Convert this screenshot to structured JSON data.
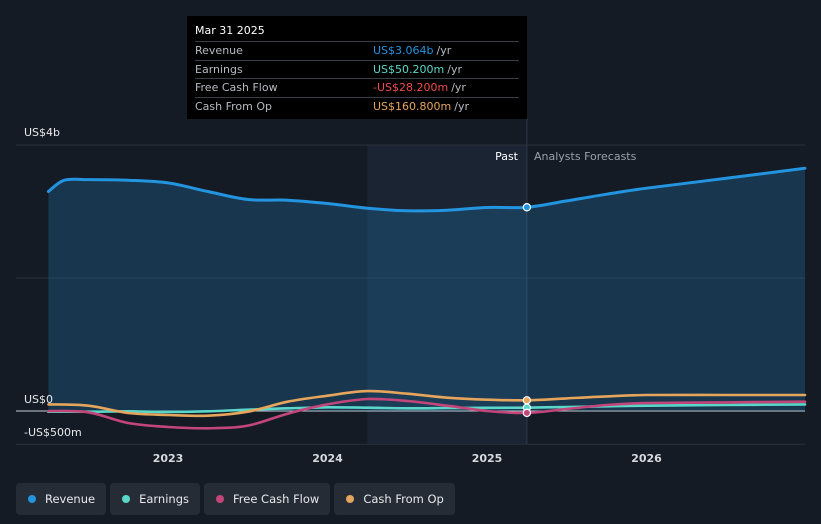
{
  "colors": {
    "background": "#151b24",
    "revenue": "#2394df",
    "earnings": "#5ad7c8",
    "free_cash_flow": "#c3467a",
    "cash_from_op": "#e6a55d",
    "past_band": "#1a2433"
  },
  "chart_data": {
    "type": "line",
    "title": "",
    "xlabel": "",
    "ylabel": "",
    "y_unit": "US$ millions",
    "ylim": [
      -500,
      4000
    ],
    "x_ticks": [
      "2023",
      "2024",
      "2025",
      "2026"
    ],
    "y_ticks": [
      {
        "value": 4000,
        "label": "US$4b"
      },
      {
        "value": 0,
        "label": "US$0"
      },
      {
        "value": -500,
        "label": "-US$500m"
      }
    ],
    "past_start": 2024.25,
    "past_end": 2025.25,
    "past_label": "Past",
    "forecast_label": "Analysts Forecasts",
    "marker_x": 2025.25,
    "series": [
      {
        "name": "Revenue",
        "key": "revenue",
        "x": [
          2022.25,
          2022.35,
          2022.5,
          2022.75,
          2023.0,
          2023.25,
          2023.5,
          2023.75,
          2024.0,
          2024.25,
          2024.5,
          2024.75,
          2025.0,
          2025.25,
          2025.5,
          2025.75,
          2026.0,
          2026.5,
          2027.0
        ],
        "values": [
          3300,
          3470,
          3480,
          3470,
          3430,
          3300,
          3180,
          3170,
          3120,
          3050,
          3010,
          3020,
          3060,
          3064,
          3160,
          3260,
          3350,
          3500,
          3650
        ]
      },
      {
        "name": "Earnings",
        "key": "earnings",
        "x": [
          2022.25,
          2022.5,
          2022.75,
          2023.0,
          2023.25,
          2023.5,
          2023.75,
          2024.0,
          2024.25,
          2024.5,
          2024.75,
          2025.0,
          2025.25,
          2025.5,
          2025.75,
          2026.0,
          2026.5,
          2027.0
        ],
        "values": [
          -10,
          -10,
          -5,
          -15,
          -5,
          20,
          40,
          55,
          50,
          40,
          45,
          48,
          50.2,
          60,
          70,
          80,
          90,
          100
        ]
      },
      {
        "name": "Free Cash Flow",
        "key": "free_cash_flow",
        "x": [
          2022.25,
          2022.5,
          2022.75,
          2023.0,
          2023.25,
          2023.5,
          2023.75,
          2024.0,
          2024.25,
          2024.5,
          2024.75,
          2025.0,
          2025.25,
          2025.5,
          2025.75,
          2026.0,
          2026.5,
          2027.0
        ],
        "values": [
          0,
          -20,
          -180,
          -240,
          -260,
          -220,
          -40,
          100,
          180,
          150,
          80,
          0,
          -28.2,
          30,
          90,
          120,
          130,
          140
        ]
      },
      {
        "name": "Cash From Op",
        "key": "cash_from_op",
        "x": [
          2022.25,
          2022.5,
          2022.75,
          2023.0,
          2023.25,
          2023.5,
          2023.75,
          2024.0,
          2024.25,
          2024.5,
          2024.75,
          2025.0,
          2025.25,
          2025.5,
          2025.75,
          2026.0,
          2026.5,
          2027.0
        ],
        "values": [
          100,
          80,
          -30,
          -60,
          -70,
          -10,
          140,
          230,
          300,
          260,
          200,
          170,
          160.8,
          190,
          220,
          240,
          240,
          240
        ]
      }
    ]
  },
  "tooltip": {
    "date": "Mar 31 2025",
    "rows": [
      {
        "label": "Revenue",
        "value": "US$3.064b",
        "unit": "/yr",
        "color_key": "revenue"
      },
      {
        "label": "Earnings",
        "value": "US$50.200m",
        "unit": "/yr",
        "color_key": "earnings"
      },
      {
        "label": "Free Cash Flow",
        "value": "-US$28.200m",
        "unit": "/yr",
        "color_key": "free_cash_flow_text"
      },
      {
        "label": "Cash From Op",
        "value": "US$160.800m",
        "unit": "/yr",
        "color_key": "cash_from_op"
      }
    ],
    "text_colors": {
      "revenue": "#2394df",
      "earnings": "#5ad7c8",
      "free_cash_flow_text": "#f04a4a",
      "cash_from_op": "#e6a55d"
    }
  },
  "legend": [
    {
      "label": "Revenue",
      "color": "#2394df"
    },
    {
      "label": "Earnings",
      "color": "#5ad7c8"
    },
    {
      "label": "Free Cash Flow",
      "color": "#c3467a"
    },
    {
      "label": "Cash From Op",
      "color": "#e6a55d"
    }
  ]
}
